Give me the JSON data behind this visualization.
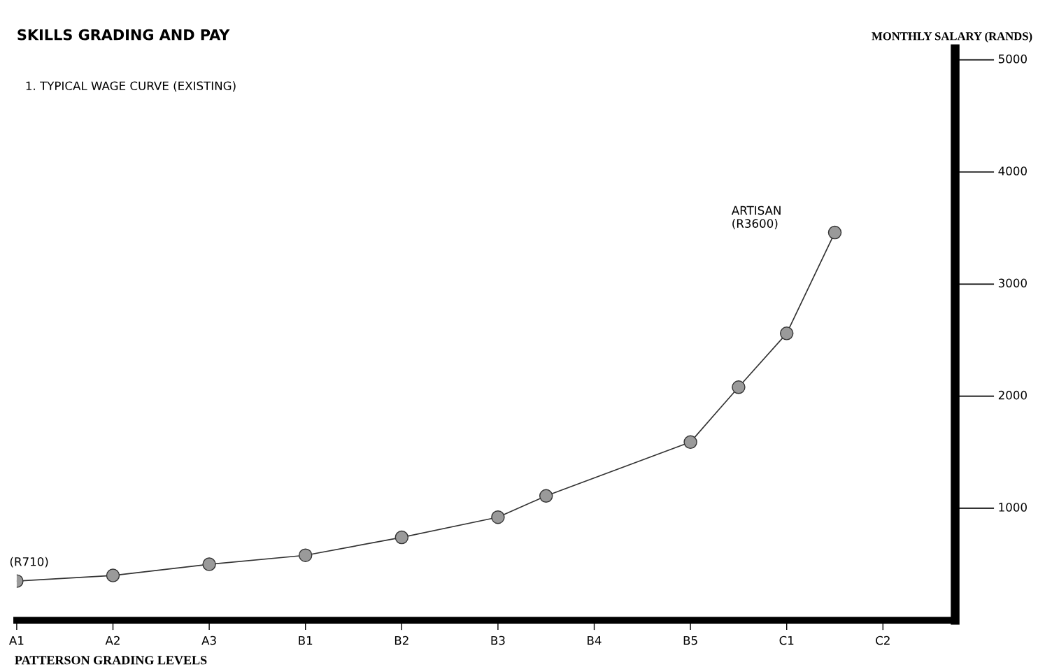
{
  "chart_data": {
    "type": "line",
    "title": "SKILLS GRADING AND PAY",
    "subtitle": "1. TYPICAL WAGE CURVE (EXISTING)",
    "xlabel": "PATTERSON GRADING LEVELS",
    "ylabel": "MONTHLY SALARY (RANDS)",
    "categories": [
      "A1",
      null,
      "A2",
      null,
      "A3",
      null,
      "B1",
      null,
      "B2",
      null,
      "B3",
      null,
      "B4",
      null,
      "B5",
      null,
      "C1",
      null,
      "C2",
      null
    ],
    "series": [
      {
        "color": "#333333",
        "values": [
          350,
          null,
          400,
          null,
          500,
          null,
          580,
          null,
          740,
          null,
          920,
          1110,
          null,
          null,
          1590,
          2080,
          2560,
          3460,
          null,
          null
        ]
      }
    ],
    "marker": "circle",
    "line_style": "solid",
    "ylim": [
      0,
      5100
    ],
    "yticks": [
      1000,
      2000,
      3000,
      4000,
      5000
    ],
    "annotations": [
      "(R710)",
      "ARTISAN\n(R3600)"
    ],
    "grid": false,
    "legend": false
  }
}
